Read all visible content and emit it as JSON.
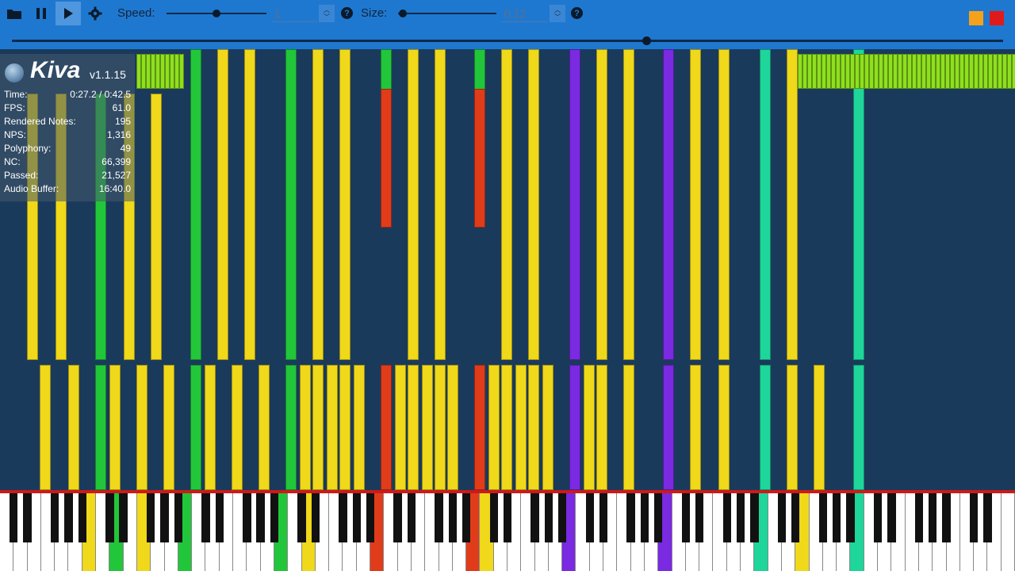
{
  "toolbar": {
    "speed_label": "Speed:",
    "speed_value": "1",
    "size_label": "Size:",
    "size_value": "0.12",
    "help_glyph": "?",
    "speed_level": 0.5,
    "size_level": 0.05,
    "seek_progress": 0.64
  },
  "stats": {
    "app_name": "Kiva",
    "version": "v1.1.15",
    "rows": [
      {
        "label": "Time:",
        "value": "0:27.2 / 0:42.5"
      },
      {
        "label": "FPS:",
        "value": "61.0"
      },
      {
        "label": "Rendered Notes:",
        "value": "195"
      },
      {
        "label": "NPS:",
        "value": "1,316"
      },
      {
        "label": "Polyphony:",
        "value": "49"
      },
      {
        "label": "NC:",
        "value": "66,399"
      },
      {
        "label": "Passed:",
        "value": "21,527"
      },
      {
        "label": "Audio Buffer:",
        "value": "16:40.0"
      }
    ]
  },
  "colors": {
    "toolbar_bg": "#1f78d0",
    "field_bg": "#1a3a5c",
    "yellow": "#f0d81a",
    "green": "#22c63a",
    "red": "#e03c1a",
    "purple": "#7a2ae0",
    "teal": "#1ed69a",
    "lime": "#8ee01e",
    "minimize": "#f5a21a",
    "close": "#e01a1a"
  }
}
